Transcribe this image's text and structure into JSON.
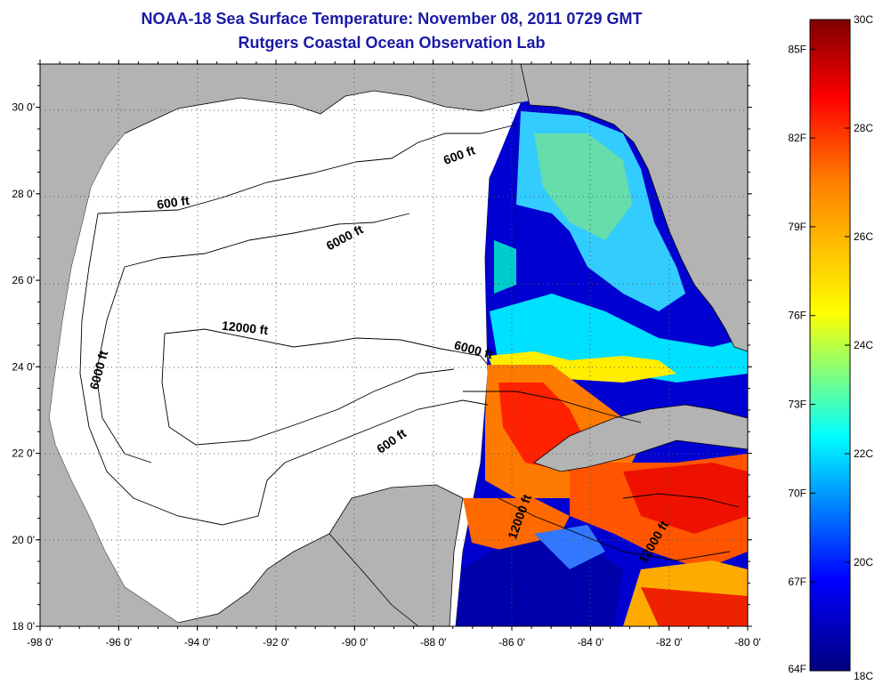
{
  "header": {
    "title": "NOAA-18 Sea Surface Temperature:  November 08, 2011 0729 GMT",
    "subtitle": "Rutgers Coastal Ocean Observation Lab"
  },
  "map": {
    "lon_range": [
      -98,
      -80
    ],
    "lat_range": [
      18,
      31
    ],
    "x_ticks": [
      "-98 0'",
      "-96 0'",
      "-94 0'",
      "-92 0'",
      "-90 0'",
      "-88 0'",
      "-86 0'",
      "-84 0'",
      "-82 0'",
      "-80 0'"
    ],
    "y_ticks": [
      "30 0'",
      "28 0'",
      "26 0'",
      "24 0'",
      "22 0'",
      "20 0'",
      "18 0'"
    ],
    "grid": "dotted",
    "land_color": "#b3b3b3",
    "no_data_color": "#ffffff",
    "contour_labels": [
      {
        "text": "600 ft",
        "lon": -94.6,
        "lat": 27.7
      },
      {
        "text": "600 ft",
        "lon": -87.3,
        "lat": 28.8
      },
      {
        "text": "6000 ft",
        "lon": -90.2,
        "lat": 26.9
      },
      {
        "text": "12000 ft",
        "lon": -92.8,
        "lat": 24.8
      },
      {
        "text": "6000 ft",
        "lon": -87.0,
        "lat": 24.3
      },
      {
        "text": "6000 ft",
        "lon": -96.4,
        "lat": 23.9
      },
      {
        "text": "600 ft",
        "lon": -89.0,
        "lat": 22.2
      },
      {
        "text": "12000 ft",
        "lon": -85.7,
        "lat": 20.5
      },
      {
        "text": "12000 ft",
        "lon": -82.3,
        "lat": 19.9
      }
    ]
  },
  "colorbar": {
    "palette": [
      "#00007f",
      "#0000ff",
      "#00ffff",
      "#ffff00",
      "#ff7f00",
      "#ff0000",
      "#7f0000"
    ],
    "range_c": [
      18,
      30
    ],
    "range_f": [
      64,
      86
    ],
    "celsius_ticks": [
      "30C",
      "28C",
      "26C",
      "24C",
      "22C",
      "20C",
      "18C"
    ],
    "fahrenheit_ticks": [
      "85F",
      "82F",
      "79F",
      "76F",
      "73F",
      "70F",
      "67F",
      "64F"
    ]
  }
}
